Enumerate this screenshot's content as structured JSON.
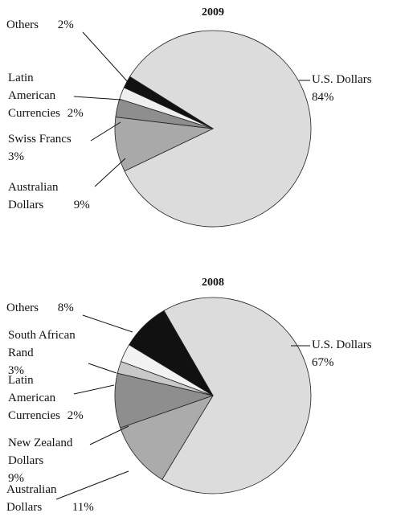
{
  "chart_data": [
    {
      "type": "pie",
      "title": "2009",
      "categories": [
        "U.S. Dollars",
        "Australian Dollars",
        "Swiss Francs",
        "Latin American Currencies",
        "Others"
      ],
      "values": [
        84,
        9,
        3,
        2,
        2
      ],
      "value_labels": [
        "84%",
        "9%",
        "3%",
        "2%",
        "2%"
      ],
      "colors": [
        "#dcdcdc",
        "#a9a9a9",
        "#8e8e8e",
        "#efefef",
        "#111111"
      ]
    },
    {
      "type": "pie",
      "title": "2008",
      "categories": [
        "U.S. Dollars",
        "Australian Dollars",
        "New Zealand Dollars",
        "Latin American Currencies",
        "South African Rand",
        "Others"
      ],
      "values": [
        67,
        11,
        9,
        2,
        3,
        8
      ],
      "value_labels": [
        "67%",
        "11%",
        "9%",
        "2%",
        "3%",
        "8%"
      ],
      "colors": [
        "#dcdcdc",
        "#ababab",
        "#8e8e8e",
        "#c8c8c8",
        "#f2f2f2",
        "#111111"
      ]
    }
  ]
}
